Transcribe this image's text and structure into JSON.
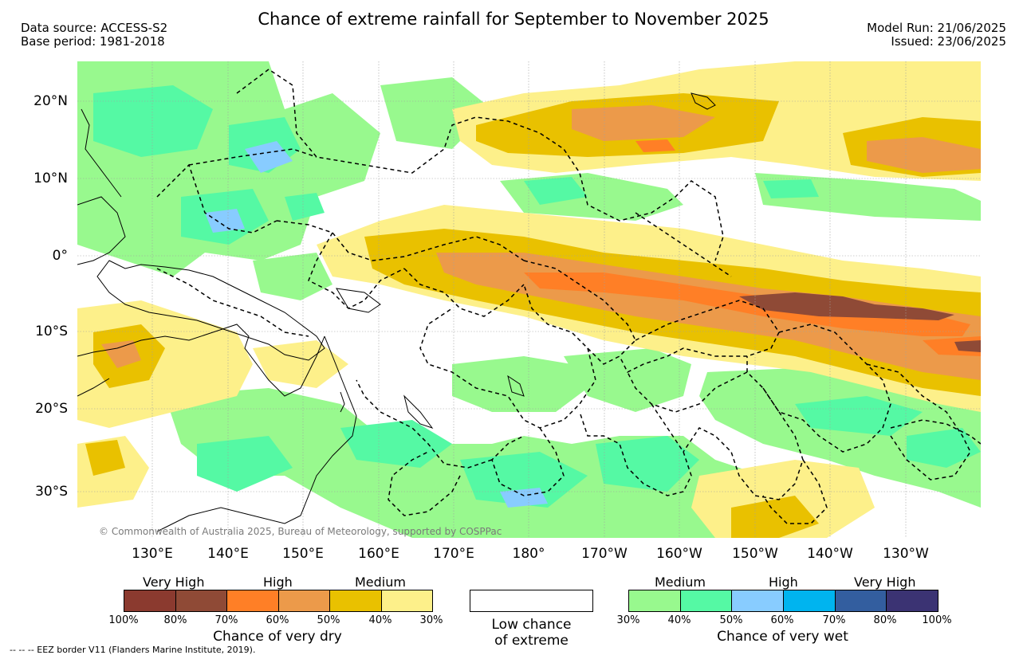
{
  "header": {
    "title": "Chance of extreme rainfall for September to November 2025",
    "data_source": "Data source: ACCESS-S2",
    "base_period": "Base period: 1981-2018",
    "model_run": "Model Run: 21/06/2025",
    "issued": "Issued: 23/06/2025"
  },
  "map": {
    "lat_labels": [
      "20°N",
      "10°N",
      "0°",
      "10°S",
      "20°S",
      "30°S"
    ],
    "lon_labels": [
      "130°E",
      "140°E",
      "150°E",
      "160°E",
      "170°E",
      "180°",
      "170°W",
      "160°W",
      "150°W",
      "140°W",
      "130°W"
    ],
    "copyright": "© Commonwealth of Australia 2025, Bureau of Meteorology, supported by COSPPac"
  },
  "legend": {
    "dry": {
      "heads": [
        "Very High",
        "High",
        "Medium"
      ],
      "colors": [
        "#8b3a2f",
        "#8f4a36",
        "#ff7f26",
        "#ec9a4a",
        "#e9c100",
        "#fdf08a"
      ],
      "ticks": [
        "100%",
        "80%",
        "70%",
        "60%",
        "50%",
        "40%",
        "30%"
      ],
      "caption": "Chance of very dry"
    },
    "low": {
      "line1": "Low chance",
      "line2": "of extreme"
    },
    "wet": {
      "heads": [
        "Medium",
        "High",
        "Very High"
      ],
      "colors": [
        "#98f98e",
        "#55f9a4",
        "#88ccff",
        "#00b4ef",
        "#335e9f",
        "#3b3373"
      ],
      "ticks": [
        "30%",
        "40%",
        "50%",
        "60%",
        "70%",
        "80%",
        "100%"
      ],
      "caption": "Chance of very wet"
    }
  },
  "footer": {
    "eez_note": "--  --  -- EEZ border V11 (Flanders Marine Institute, 2019)."
  }
}
